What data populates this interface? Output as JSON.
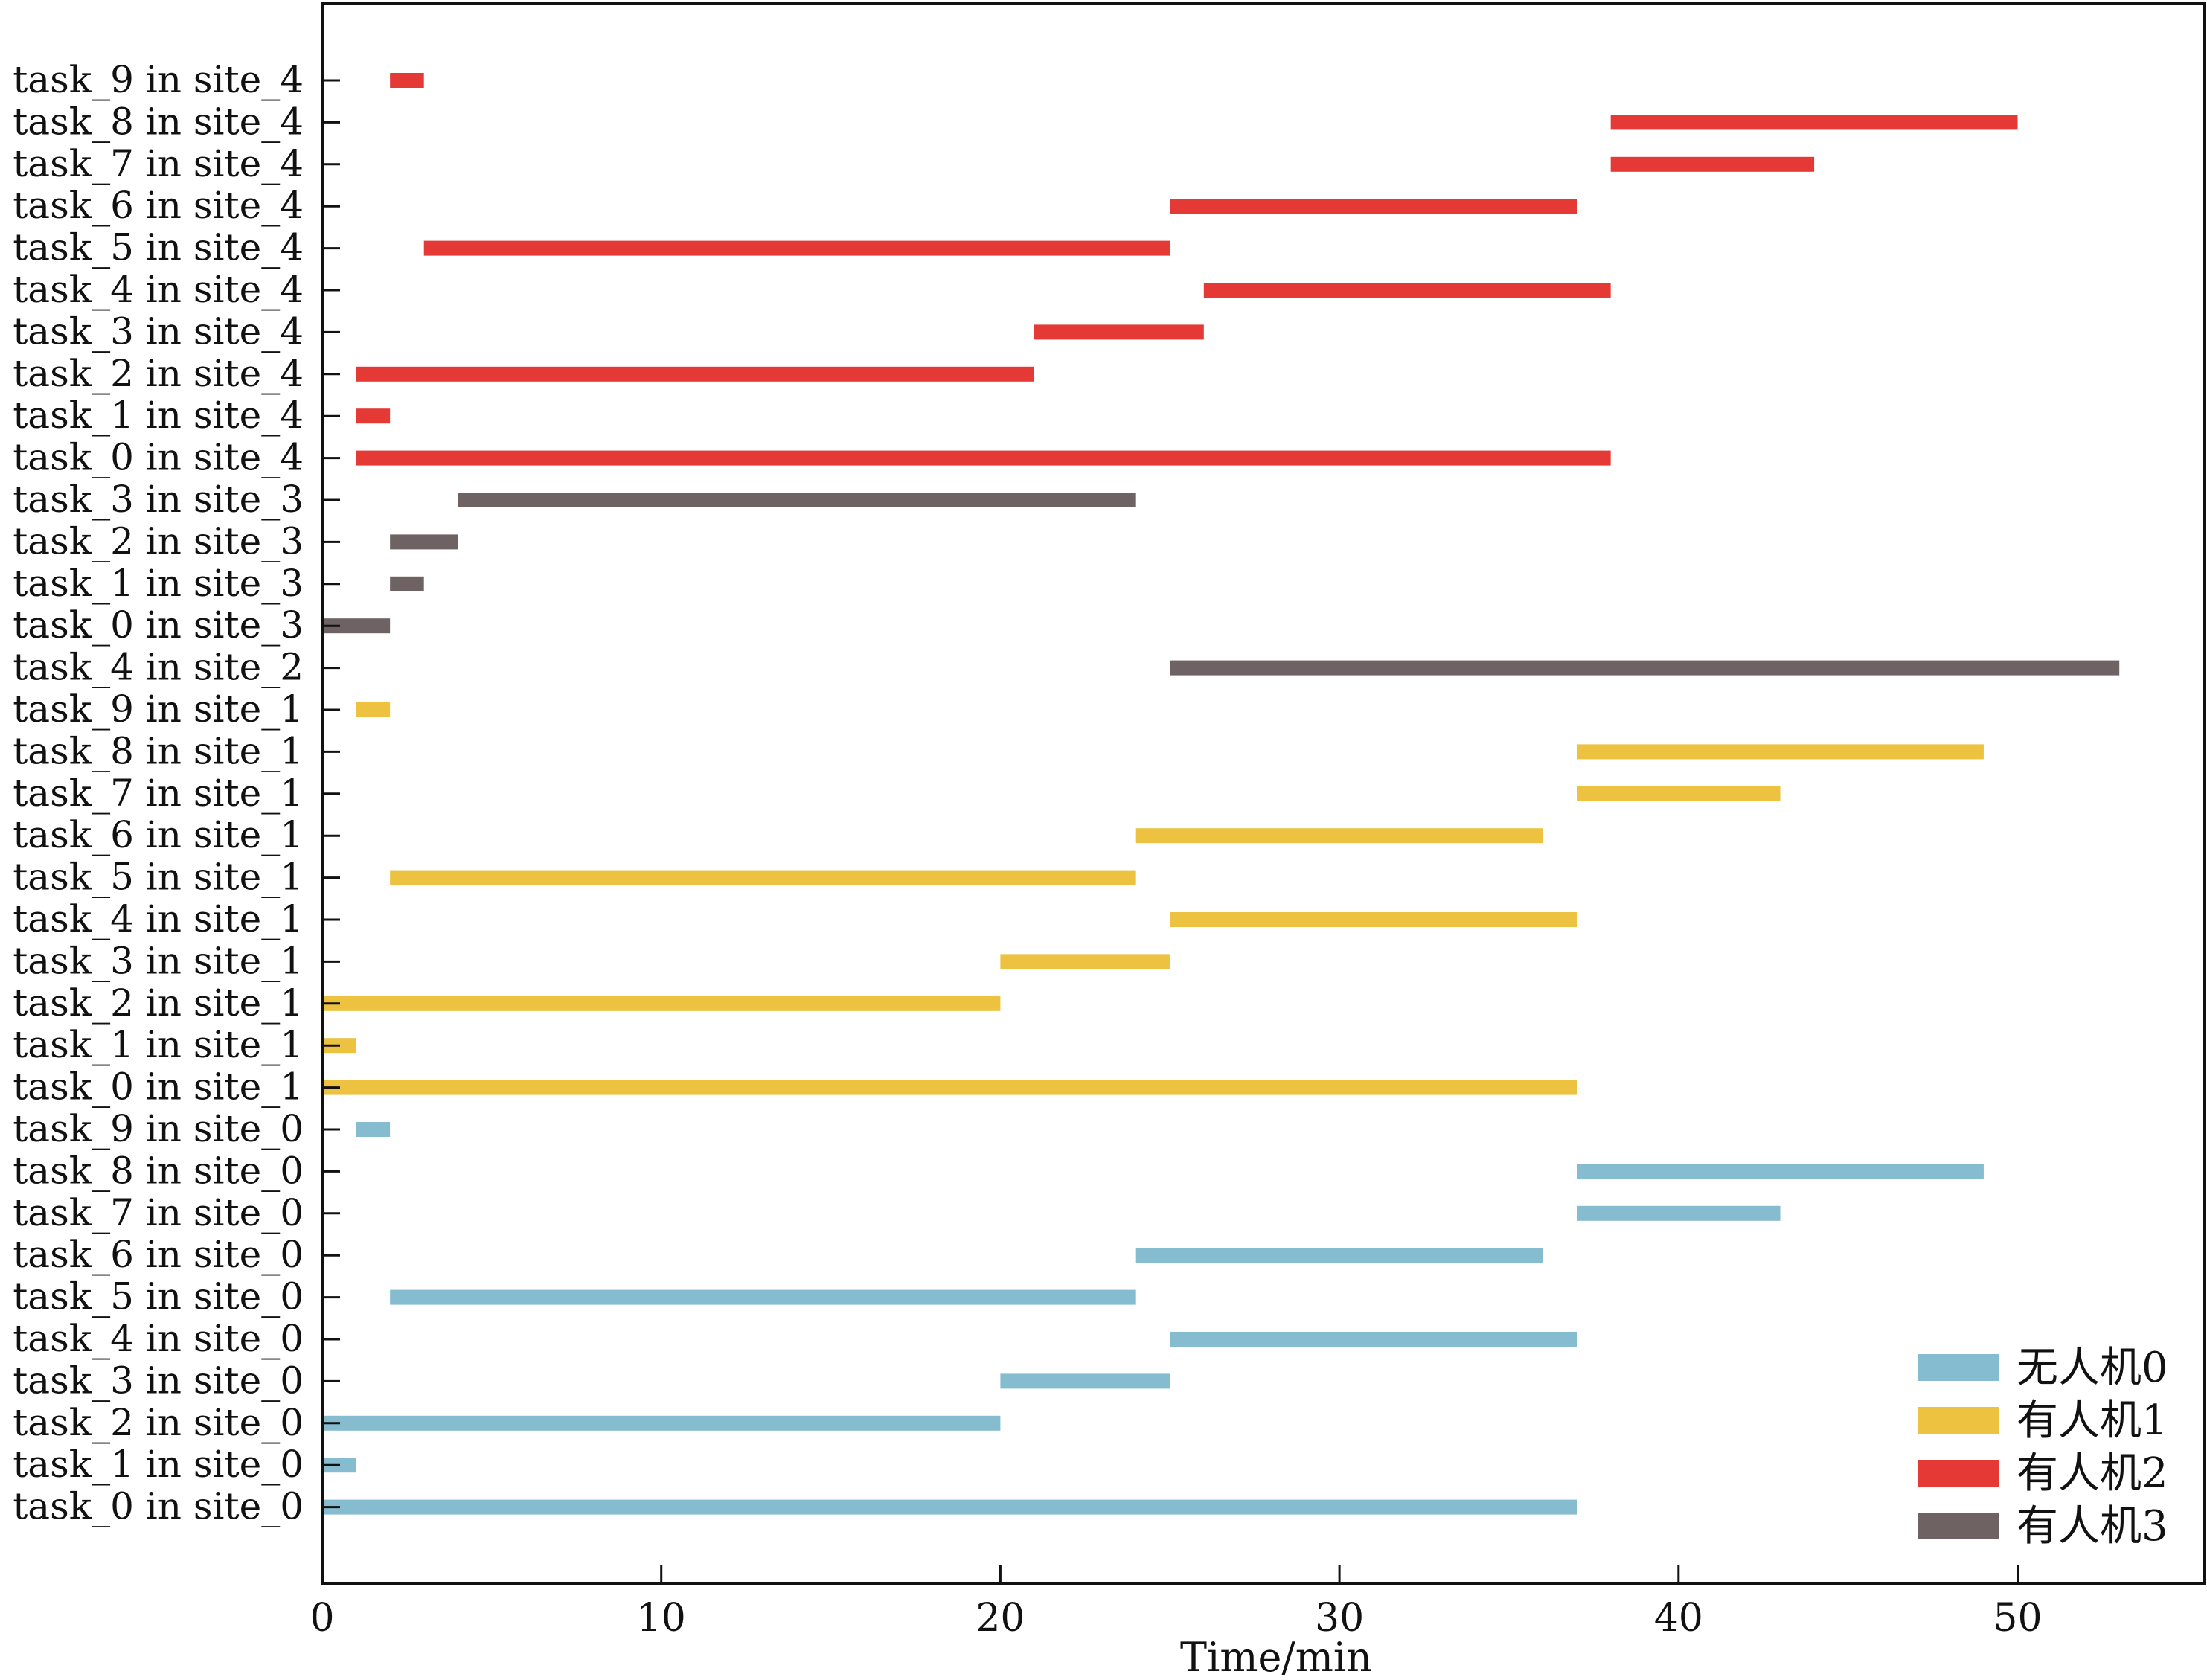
{
  "chart_data": {
    "type": "gantt",
    "title": "",
    "xlabel": "Time/min",
    "ylabel": "",
    "xlim": [
      0,
      55.5
    ],
    "xticks": [
      0,
      10,
      20,
      30,
      40,
      50
    ],
    "grid": false,
    "legend_position": "bottom-right",
    "series": [
      {
        "name": "无人机0",
        "color": "#86BCD0"
      },
      {
        "name": "有人机1",
        "color": "#EDC240"
      },
      {
        "name": "有人机2",
        "color": "#E53935"
      },
      {
        "name": "有人机3",
        "color": "#6E6262"
      }
    ],
    "rows": [
      {
        "label": "task_9 in site_4",
        "series": 2,
        "start": 2,
        "end": 3
      },
      {
        "label": "task_8 in site_4",
        "series": 2,
        "start": 38,
        "end": 50
      },
      {
        "label": "task_7 in site_4",
        "series": 2,
        "start": 38,
        "end": 44
      },
      {
        "label": "task_6 in site_4",
        "series": 2,
        "start": 25,
        "end": 37
      },
      {
        "label": "task_5 in site_4",
        "series": 2,
        "start": 3,
        "end": 25
      },
      {
        "label": "task_4 in site_4",
        "series": 2,
        "start": 26,
        "end": 38
      },
      {
        "label": "task_3 in site_4",
        "series": 2,
        "start": 21,
        "end": 26
      },
      {
        "label": "task_2 in site_4",
        "series": 2,
        "start": 1,
        "end": 21
      },
      {
        "label": "task_1 in site_4",
        "series": 2,
        "start": 1,
        "end": 2
      },
      {
        "label": "task_0 in site_4",
        "series": 2,
        "start": 1,
        "end": 38
      },
      {
        "label": "task_3 in site_3",
        "series": 3,
        "start": 4,
        "end": 24
      },
      {
        "label": "task_2 in site_3",
        "series": 3,
        "start": 2,
        "end": 4
      },
      {
        "label": "task_1 in site_3",
        "series": 3,
        "start": 2,
        "end": 3
      },
      {
        "label": "task_0 in site_3",
        "series": 3,
        "start": 0,
        "end": 2
      },
      {
        "label": "task_4 in site_2",
        "series": 3,
        "start": 25,
        "end": 53
      },
      {
        "label": "task_9 in site_1",
        "series": 1,
        "start": 1,
        "end": 2
      },
      {
        "label": "task_8 in site_1",
        "series": 1,
        "start": 37,
        "end": 49
      },
      {
        "label": "task_7 in site_1",
        "series": 1,
        "start": 37,
        "end": 43
      },
      {
        "label": "task_6 in site_1",
        "series": 1,
        "start": 24,
        "end": 36
      },
      {
        "label": "task_5 in site_1",
        "series": 1,
        "start": 2,
        "end": 24
      },
      {
        "label": "task_4 in site_1",
        "series": 1,
        "start": 25,
        "end": 37
      },
      {
        "label": "task_3 in site_1",
        "series": 1,
        "start": 20,
        "end": 25
      },
      {
        "label": "task_2 in site_1",
        "series": 1,
        "start": 0,
        "end": 20
      },
      {
        "label": "task_1 in site_1",
        "series": 1,
        "start": 0,
        "end": 1
      },
      {
        "label": "task_0 in site_1",
        "series": 1,
        "start": 0,
        "end": 37
      },
      {
        "label": "task_9 in site_0",
        "series": 0,
        "start": 1,
        "end": 2
      },
      {
        "label": "task_8 in site_0",
        "series": 0,
        "start": 37,
        "end": 49
      },
      {
        "label": "task_7 in site_0",
        "series": 0,
        "start": 37,
        "end": 43
      },
      {
        "label": "task_6 in site_0",
        "series": 0,
        "start": 24,
        "end": 36
      },
      {
        "label": "task_5 in site_0",
        "series": 0,
        "start": 2,
        "end": 24
      },
      {
        "label": "task_4 in site_0",
        "series": 0,
        "start": 25,
        "end": 37
      },
      {
        "label": "task_3 in site_0",
        "series": 0,
        "start": 20,
        "end": 25
      },
      {
        "label": "task_2 in site_0",
        "series": 0,
        "start": 0,
        "end": 20
      },
      {
        "label": "task_1 in site_0",
        "series": 0,
        "start": 0,
        "end": 1
      },
      {
        "label": "task_0 in site_0",
        "series": 0,
        "start": 0,
        "end": 37
      }
    ]
  }
}
